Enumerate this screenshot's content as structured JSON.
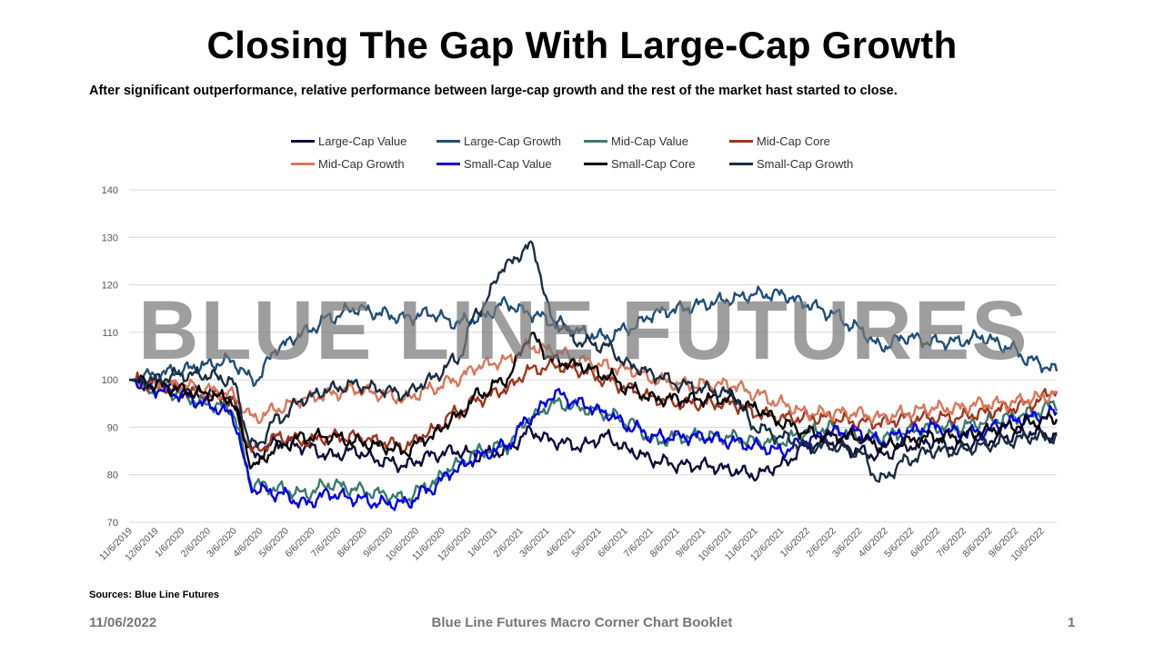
{
  "title": "Closing The Gap With Large-Cap Growth",
  "subtitle": "After significant outperformance, relative performance between large-cap growth and the rest of the market hast started to close.",
  "watermark": "BLUE LINE FUTURES",
  "source": "Sources: Blue Line Futures",
  "footer": {
    "date": "11/06/2022",
    "center": "Blue Line Futures Macro Corner Chart Booklet",
    "page": "1"
  },
  "chart_data": {
    "type": "line",
    "ylim": [
      70,
      140
    ],
    "yticks": [
      70,
      80,
      90,
      100,
      110,
      120,
      130,
      140
    ],
    "grid": true,
    "legend_position": "top",
    "x_tick_labels": [
      "11/6/2019",
      "12/6/2019",
      "1/6/2020",
      "2/6/2020",
      "3/6/2020",
      "4/6/2020",
      "5/6/2020",
      "6/6/2020",
      "7/6/2020",
      "8/6/2020",
      "9/6/2020",
      "10/6/2020",
      "11/6/2020",
      "12/6/2020",
      "1/6/2021",
      "2/6/2021",
      "3/6/2021",
      "4/6/2021",
      "5/6/2021",
      "6/6/2021",
      "7/6/2021",
      "8/6/2021",
      "9/6/2021",
      "10/6/2021",
      "11/6/2021",
      "12/6/2021",
      "1/6/2022",
      "2/6/2022",
      "3/6/2022",
      "4/6/2022",
      "5/6/2022",
      "6/6/2022",
      "7/6/2022",
      "8/6/2022",
      "9/6/2022",
      "10/6/2022"
    ],
    "series": [
      {
        "name": "Large-Cap Value",
        "color": "#0d0d3b",
        "values": [
          100,
          99,
          98,
          97,
          96,
          84,
          87,
          86,
          84,
          85,
          83,
          82,
          84,
          85,
          84,
          85,
          89,
          87,
          86,
          88,
          85,
          83,
          82,
          82,
          81,
          80,
          82,
          86,
          87,
          85,
          84,
          86,
          87,
          86,
          87,
          88,
          89,
          88
        ]
      },
      {
        "name": "Large-Cap Growth",
        "color": "#1f4e79",
        "values": [
          100,
          101,
          102,
          103,
          104,
          100,
          107,
          110,
          113,
          115,
          114,
          113,
          114,
          112,
          113,
          116,
          114,
          112,
          110,
          109,
          111,
          114,
          115,
          116,
          117,
          118,
          118,
          116,
          114,
          111,
          107,
          109,
          108,
          108,
          109,
          107,
          104,
          102
        ]
      },
      {
        "name": "Mid-Cap Value",
        "color": "#3d7a70",
        "values": [
          100,
          98,
          97,
          95,
          94,
          78,
          77,
          76,
          78,
          77,
          76,
          75,
          78,
          82,
          85,
          86,
          92,
          95,
          94,
          93,
          91,
          87,
          88,
          88,
          88,
          87,
          87,
          89,
          90,
          88,
          88,
          89,
          90,
          90,
          91,
          92,
          93,
          95
        ]
      },
      {
        "name": "Mid-Cap Core",
        "color": "#a0341e",
        "values": [
          100,
          99,
          98,
          97,
          96,
          85,
          88,
          87,
          88,
          88,
          87,
          86,
          89,
          93,
          96,
          98,
          102,
          103,
          102,
          100,
          98,
          96,
          95,
          95,
          95,
          93,
          92,
          92,
          92,
          91,
          91,
          92,
          92,
          92,
          93,
          94,
          95,
          98
        ]
      },
      {
        "name": "Mid-Cap Growth",
        "color": "#d9775a",
        "values": [
          100,
          99,
          99,
          98,
          97,
          92,
          94,
          96,
          97,
          98,
          97,
          96,
          98,
          100,
          103,
          104,
          107,
          106,
          104,
          103,
          102,
          100,
          99,
          99,
          99,
          97,
          95,
          93,
          93,
          93,
          92,
          93,
          94,
          94,
          95,
          95,
          96,
          97
        ]
      },
      {
        "name": "Small-Cap Value",
        "color": "#0000e6",
        "values": [
          100,
          98,
          97,
          95,
          93,
          77,
          76,
          74,
          76,
          75,
          74,
          74,
          77,
          81,
          84,
          86,
          92,
          97,
          95,
          93,
          90,
          88,
          88,
          88,
          87,
          86,
          85,
          87,
          89,
          89,
          87,
          89,
          90,
          89,
          89,
          91,
          92,
          93
        ]
      },
      {
        "name": "Small-Cap Core",
        "color": "#000000",
        "values": [
          100,
          99,
          98,
          97,
          96,
          82,
          86,
          88,
          88,
          87,
          86,
          85,
          88,
          92,
          97,
          100,
          109,
          104,
          103,
          101,
          98,
          96,
          96,
          96,
          96,
          94,
          91,
          89,
          88,
          88,
          86,
          87,
          88,
          88,
          89,
          90,
          91,
          92
        ]
      },
      {
        "name": "Small-Cap Growth",
        "color": "#1b2e42",
        "values": [
          100,
          100,
          101,
          101,
          100,
          86,
          92,
          96,
          98,
          99,
          98,
          97,
          100,
          104,
          115,
          124,
          128,
          112,
          108,
          107,
          103,
          101,
          99,
          98,
          97,
          90,
          88,
          86,
          86,
          85,
          79,
          83,
          85,
          85,
          86,
          87,
          88,
          88
        ]
      }
    ]
  }
}
